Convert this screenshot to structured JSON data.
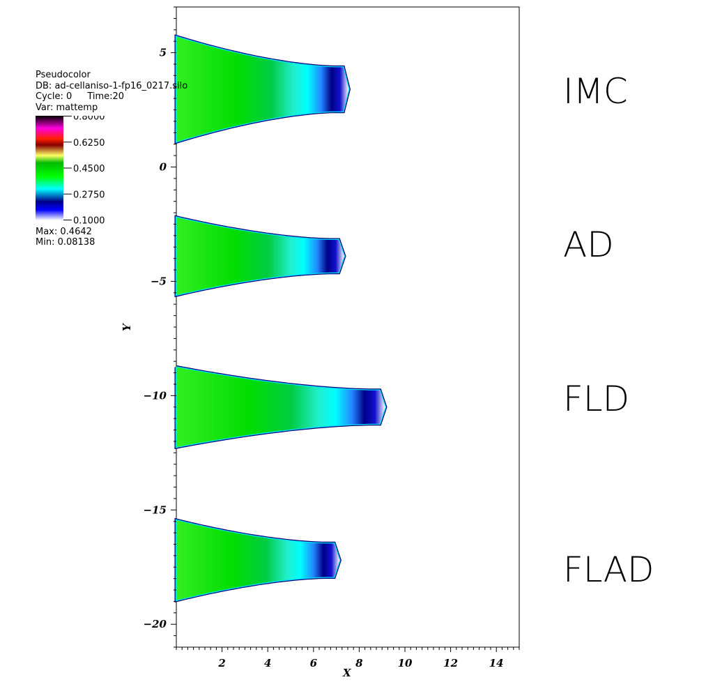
{
  "legend": {
    "plot_type": "Pseudocolor",
    "db": "DB: ad-cellaniso-1-fp16_0217.silo",
    "cycle": "Cycle: 0",
    "time": "Time:20",
    "var": "Var: mattemp",
    "ticks": [
      "0.8000",
      "0.6250",
      "0.4500",
      "0.2750",
      "0.1000"
    ],
    "max": "Max:  0.4642",
    "min": "Min:  0.08138",
    "colormap": [
      "#ffffff",
      "#0000ff",
      "#00ffff",
      "#00ff00",
      "#ffff00",
      "#ff0000",
      "#ff00ff",
      "#000000"
    ]
  },
  "labels": {
    "imc": "IMC",
    "ad": "AD",
    "fld": "FLD",
    "flad": "FLAD"
  },
  "chart_data": {
    "type": "heatmap",
    "title": "",
    "xlabel": "X",
    "ylabel": "Y",
    "xlim": [
      0,
      15
    ],
    "ylim": [
      -21,
      7
    ],
    "x_ticks": [
      2,
      4,
      6,
      8,
      10,
      12,
      14
    ],
    "y_ticks": [
      5,
      0,
      -5,
      -10,
      -15,
      -20
    ],
    "variable": "mattemp",
    "value_range": [
      0.1,
      0.8
    ],
    "data_max": 0.4642,
    "data_min": 0.08138,
    "series": [
      {
        "name": "IMC",
        "center_y": 3.4,
        "half_width_at_x0": 2.3,
        "front_x": 7.3
      },
      {
        "name": "AD",
        "center_y": -3.9,
        "half_width_at_x0": 1.7,
        "front_x": 7.1
      },
      {
        "name": "FLD",
        "center_y": -10.5,
        "half_width_at_x0": 1.75,
        "front_x": 8.9
      },
      {
        "name": "FLAD",
        "center_y": -17.2,
        "half_width_at_x0": 1.75,
        "front_x": 6.9
      }
    ]
  }
}
